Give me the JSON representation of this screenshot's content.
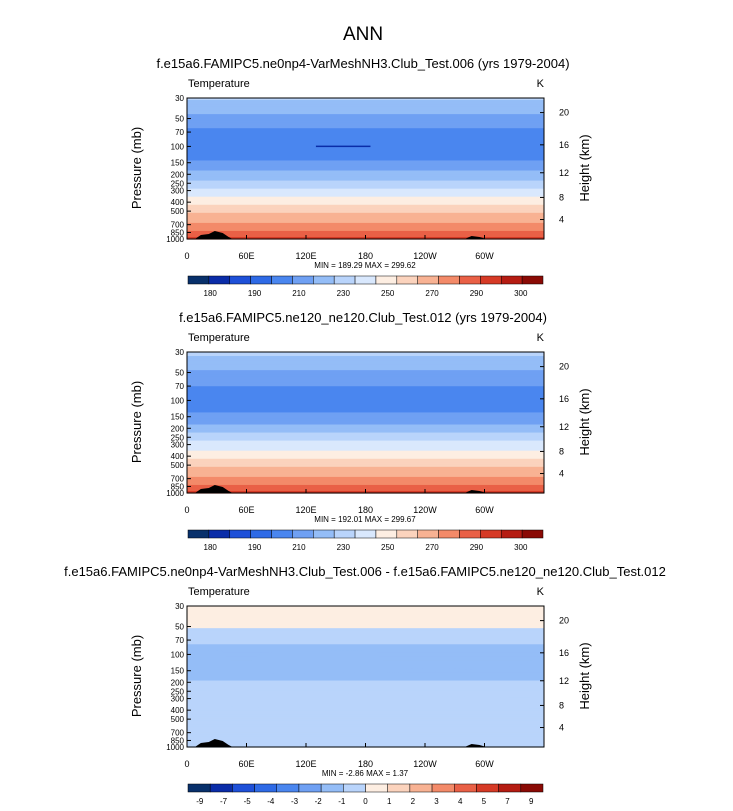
{
  "figure_title": "ANN",
  "colors": {
    "temperature_scale": [
      "#08306b",
      "#0a2ca8",
      "#1e50d8",
      "#2e6ae6",
      "#4a86ef",
      "#6fa0f3",
      "#94bdf7",
      "#b9d4fb",
      "#d9e8fd",
      "#fdeee2",
      "#fbd3bd",
      "#f8b293",
      "#f38a69",
      "#e96046",
      "#d63a26",
      "#b51c12",
      "#8a0a05"
    ],
    "diff_scale": [
      "#08306b",
      "#0a2ca8",
      "#1e50d8",
      "#2e6ae6",
      "#4a86ef",
      "#6fa0f3",
      "#94bdf7",
      "#b9d4fb",
      "#d9e8fd",
      "#fdeee2",
      "#fbd3bd",
      "#f8b293",
      "#f38a69",
      "#e96046",
      "#d63a26",
      "#b51c12",
      "#8a0a05"
    ],
    "topography": "#000000"
  },
  "chart_data": [
    {
      "type": "heatmap",
      "title": "f.e15a6.FAMIPC5.ne0np4-VarMeshNH3.Club_Test.006 (yrs 1979-2004)",
      "variable_label": "Temperature",
      "units_label": "K",
      "ylabel": "Pressure (mb)",
      "ylabel_right": "Height (km)",
      "pressure_ticks": [
        30,
        50,
        70,
        100,
        150,
        200,
        250,
        300,
        400,
        500,
        700,
        850,
        1000
      ],
      "height_ticks": [
        4,
        8,
        12,
        16,
        20
      ],
      "longitude_ticks": [
        "0",
        "60E",
        "120E",
        "180",
        "120W",
        "60W"
      ],
      "longitude_values": [
        0,
        60,
        120,
        180,
        240,
        300
      ],
      "xlim": [
        0,
        360
      ],
      "ylim_mb": [
        1000,
        30
      ],
      "min": 189.29,
      "max": 299.62,
      "minmax_text": "MIN = 189.29   MAX = 299.62",
      "colorbar_labels": [
        "180",
        "190",
        "210",
        "230",
        "250",
        "270",
        "290",
        "300"
      ],
      "levels": [
        175,
        180,
        185,
        190,
        200,
        210,
        220,
        230,
        240,
        250,
        260,
        270,
        280,
        290,
        295,
        300
      ],
      "profile": [
        {
          "p": 30,
          "t": 222
        },
        {
          "p": 40,
          "t": 214
        },
        {
          "p": 50,
          "t": 206
        },
        {
          "p": 60,
          "t": 201
        },
        {
          "p": 70,
          "t": 199
        },
        {
          "p": 85,
          "t": 197
        },
        {
          "p": 100,
          "t": 196
        },
        {
          "p": 120,
          "t": 197
        },
        {
          "p": 150,
          "t": 201
        },
        {
          "p": 180,
          "t": 208
        },
        {
          "p": 200,
          "t": 214
        },
        {
          "p": 230,
          "t": 220
        },
        {
          "p": 250,
          "t": 225
        },
        {
          "p": 300,
          "t": 233
        },
        {
          "p": 350,
          "t": 240
        },
        {
          "p": 400,
          "t": 248
        },
        {
          "p": 500,
          "t": 258
        },
        {
          "p": 600,
          "t": 266
        },
        {
          "p": 700,
          "t": 273
        },
        {
          "p": 850,
          "t": 283
        },
        {
          "p": 920,
          "t": 289
        },
        {
          "p": 1000,
          "t": 295
        }
      ]
    },
    {
      "type": "heatmap",
      "title": "f.e15a6.FAMIPC5.ne120_ne120.Club_Test.012 (yrs 1979-2004)",
      "variable_label": "Temperature",
      "units_label": "K",
      "ylabel": "Pressure (mb)",
      "ylabel_right": "Height (km)",
      "pressure_ticks": [
        30,
        50,
        70,
        100,
        150,
        200,
        250,
        300,
        400,
        500,
        700,
        850,
        1000
      ],
      "height_ticks": [
        4,
        8,
        12,
        16,
        20
      ],
      "longitude_ticks": [
        "0",
        "60E",
        "120E",
        "180",
        "120W",
        "60W"
      ],
      "longitude_values": [
        0,
        60,
        120,
        180,
        240,
        300
      ],
      "xlim": [
        0,
        360
      ],
      "ylim_mb": [
        1000,
        30
      ],
      "min": 192.01,
      "max": 299.67,
      "minmax_text": "MIN = 192.01   MAX = 299.67",
      "colorbar_labels": [
        "180",
        "190",
        "210",
        "230",
        "250",
        "270",
        "290",
        "300"
      ],
      "levels": [
        175,
        180,
        185,
        190,
        200,
        210,
        220,
        230,
        240,
        250,
        260,
        270,
        280,
        290,
        295,
        300
      ],
      "profile": [
        {
          "p": 30,
          "t": 223
        },
        {
          "p": 40,
          "t": 215
        },
        {
          "p": 50,
          "t": 207
        },
        {
          "p": 60,
          "t": 202
        },
        {
          "p": 70,
          "t": 200
        },
        {
          "p": 85,
          "t": 198
        },
        {
          "p": 100,
          "t": 197
        },
        {
          "p": 120,
          "t": 198
        },
        {
          "p": 150,
          "t": 202
        },
        {
          "p": 180,
          "t": 209
        },
        {
          "p": 200,
          "t": 215
        },
        {
          "p": 230,
          "t": 221
        },
        {
          "p": 250,
          "t": 226
        },
        {
          "p": 300,
          "t": 234
        },
        {
          "p": 350,
          "t": 241
        },
        {
          "p": 400,
          "t": 248
        },
        {
          "p": 500,
          "t": 258
        },
        {
          "p": 600,
          "t": 266
        },
        {
          "p": 700,
          "t": 273
        },
        {
          "p": 850,
          "t": 283
        },
        {
          "p": 920,
          "t": 289
        },
        {
          "p": 1000,
          "t": 295
        }
      ]
    },
    {
      "type": "heatmap",
      "title": "f.e15a6.FAMIPC5.ne0np4-VarMeshNH3.Club_Test.006 - f.e15a6.FAMIPC5.ne120_ne120.Club_Test.012",
      "variable_label": "Temperature",
      "units_label": "K",
      "ylabel": "Pressure (mb)",
      "ylabel_right": "Height (km)",
      "pressure_ticks": [
        30,
        50,
        70,
        100,
        150,
        200,
        250,
        300,
        400,
        500,
        700,
        850,
        1000
      ],
      "height_ticks": [
        4,
        8,
        12,
        16,
        20
      ],
      "longitude_ticks": [
        "0",
        "60E",
        "120E",
        "180",
        "120W",
        "60W"
      ],
      "longitude_values": [
        0,
        60,
        120,
        180,
        240,
        300
      ],
      "xlim": [
        0,
        360
      ],
      "ylim_mb": [
        1000,
        30
      ],
      "min": -2.86,
      "max": 1.37,
      "minmax_text": "MIN = -2.86   MAX = 1.37",
      "colorbar_labels": [
        "-9",
        "-7",
        "-5",
        "-4",
        "-3",
        "-2",
        "-1",
        "0",
        "1",
        "2",
        "3",
        "4",
        "5",
        "7",
        "9"
      ],
      "levels": [
        -9,
        -7,
        -5,
        -4,
        -3,
        -2,
        -1,
        0,
        1,
        2,
        3,
        4,
        5,
        7,
        9
      ],
      "profile": [
        {
          "p": 30,
          "t": 0.4
        },
        {
          "p": 50,
          "t": 0.3
        },
        {
          "p": 55,
          "t": -0.3
        },
        {
          "p": 70,
          "t": -0.7
        },
        {
          "p": 85,
          "t": -1.2
        },
        {
          "p": 100,
          "t": -1.5
        },
        {
          "p": 150,
          "t": -1.4
        },
        {
          "p": 200,
          "t": -0.9
        },
        {
          "p": 300,
          "t": -0.7
        },
        {
          "p": 400,
          "t": -0.4
        },
        {
          "p": 700,
          "t": -0.3
        },
        {
          "p": 1000,
          "t": -0.2
        }
      ]
    }
  ]
}
